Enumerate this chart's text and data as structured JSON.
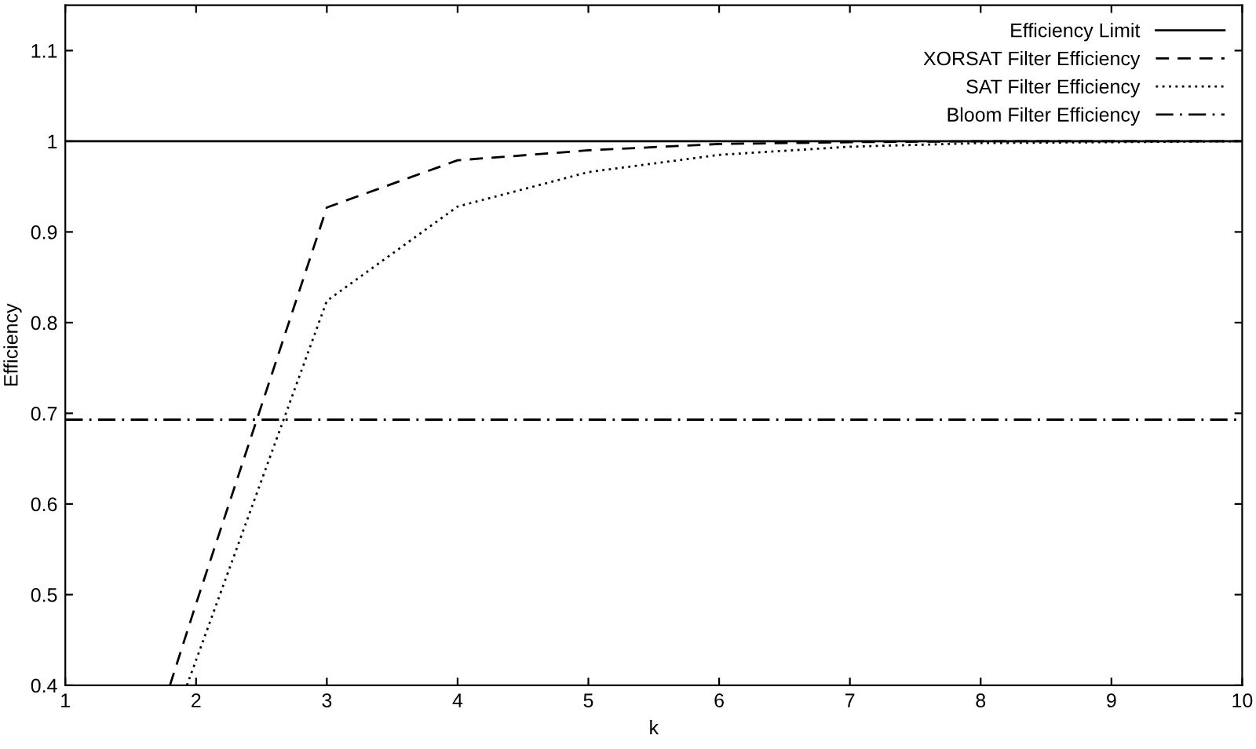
{
  "chart_data": {
    "type": "line",
    "xlabel": "k",
    "ylabel": "Efficiency",
    "xlim": [
      1,
      10
    ],
    "ylim": [
      0.4,
      1.15
    ],
    "xticks": [
      1,
      2,
      3,
      4,
      5,
      6,
      7,
      8,
      9,
      10
    ],
    "yticks": [
      0.4,
      0.5,
      0.6,
      0.7,
      0.8,
      0.9,
      {
        "value": 1,
        "label": "1"
      },
      1.1
    ],
    "grid": false,
    "legend": "top right",
    "marker": "none",
    "series": [
      {
        "name": "Efficiency Limit",
        "color": "#000000",
        "line_style": "solid",
        "x": [
          1,
          10
        ],
        "values": [
          1.0,
          1.0
        ]
      },
      {
        "name": "XORSAT Filter Efficiency",
        "color": "#000000",
        "line_style": "dashed",
        "x": [
          1.8,
          2,
          3,
          4,
          5,
          6,
          7,
          8,
          9,
          10
        ],
        "values": [
          0.4,
          0.49,
          0.927,
          0.979,
          0.99,
          0.997,
          0.999,
          1.0,
          1.0,
          1.0
        ]
      },
      {
        "name": "SAT Filter Efficiency",
        "color": "#000000",
        "line_style": "dotted",
        "x": [
          1.93,
          3,
          4,
          5,
          6,
          7,
          8,
          9,
          10
        ],
        "values": [
          0.4,
          0.824,
          0.928,
          0.966,
          0.985,
          0.994,
          0.998,
          0.999,
          1.0
        ]
      },
      {
        "name": "Bloom Filter Efficiency",
        "color": "#000000",
        "line_style": "dashdot",
        "x": [
          1,
          10
        ],
        "values": [
          0.693,
          0.693
        ]
      }
    ]
  }
}
